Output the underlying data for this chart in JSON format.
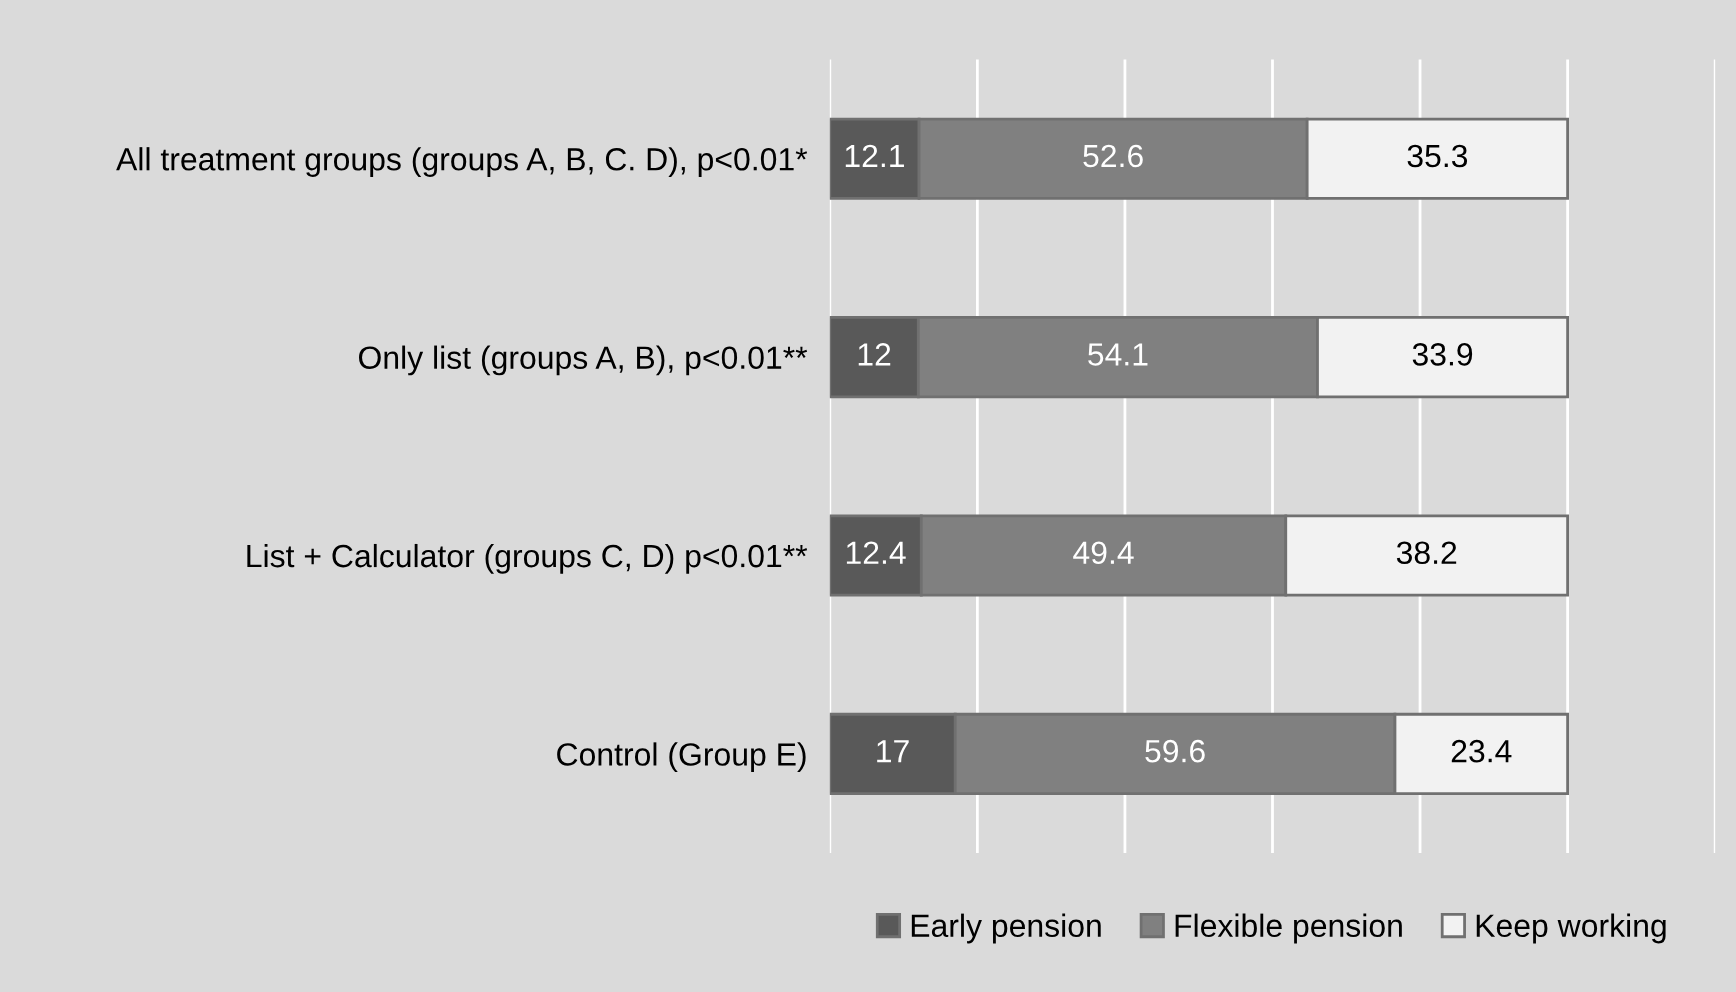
{
  "chart_data": {
    "type": "bar",
    "orientation": "horizontal",
    "stacked": true,
    "data_labels": true,
    "categories": [
      "All treatment groups (groups A, B, C. D), p<0.01*",
      "Only list (groups A, B), p<0.01**",
      "List + Calculator (groups C, D) p<0.01**",
      "Control (Group E)"
    ],
    "series": [
      {
        "name": "Early pension",
        "color": "#595959",
        "values": [
          12.1,
          12,
          12.4,
          17
        ]
      },
      {
        "name": "Flexible pension",
        "color": "#808080",
        "values": [
          52.6,
          54.1,
          49.4,
          59.6
        ]
      },
      {
        "name": "Keep working",
        "color": "#f2f2f2",
        "values": [
          35.3,
          33.9,
          38.2,
          23.4
        ]
      }
    ],
    "xlim": [
      0,
      120
    ],
    "xticks": [
      {
        "value": 0,
        "label": null
      },
      {
        "value": 20,
        "label": null
      },
      {
        "value": 40,
        "label": null
      },
      {
        "value": 60,
        "label": null
      },
      {
        "value": 80,
        "label": null
      },
      {
        "value": 100,
        "label": null
      },
      {
        "value": 120,
        "label": null
      }
    ],
    "tick_labels": "y",
    "grid": "x",
    "legend": "bottom"
  }
}
